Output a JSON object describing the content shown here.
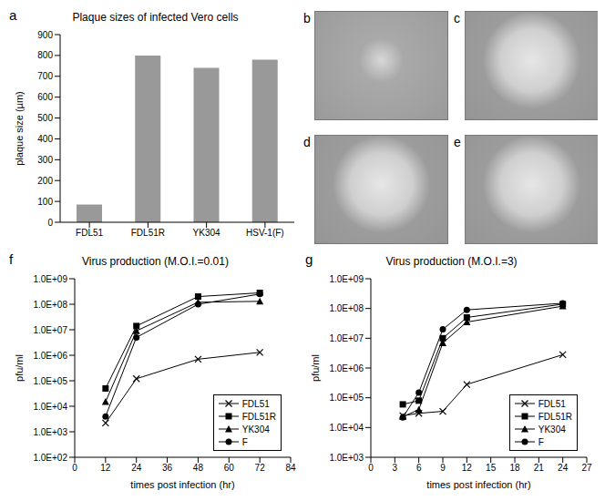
{
  "chart_data": [
    {
      "type": "bar",
      "annotations": [
        "a"
      ],
      "title": "Plaque sizes of infected Vero cells",
      "y_label": "plaque size (µm)",
      "categories": [
        "FDL51",
        "FDL51R",
        "YK304",
        "HSV-1(F)"
      ],
      "values": [
        85,
        800,
        740,
        780
      ],
      "color": "#999999",
      "ylim": [
        0,
        900
      ],
      "yticks": [
        0,
        100,
        200,
        300,
        400,
        500,
        600,
        700,
        800,
        900
      ]
    },
    {
      "type": "line",
      "annotations": [
        "f"
      ],
      "title": "Virus production (M.O.I.=0.01)",
      "x_label": "times post infection (hr)",
      "y_label": "pfu/ml",
      "log": "y",
      "legend": "lower right",
      "x": [
        12,
        24,
        48,
        72
      ],
      "xlim": [
        0,
        84
      ],
      "xticks": [
        0,
        12,
        24,
        36,
        48,
        60,
        72,
        84
      ],
      "ylim": [
        100,
        1000000000
      ],
      "yticks": [
        {
          "value": 100,
          "label": "1.0E+02"
        },
        {
          "value": 1000,
          "label": "1.0E+03"
        },
        {
          "value": 10000,
          "label": "1.0E+04"
        },
        {
          "value": 100000,
          "label": "1.0E+05"
        },
        {
          "value": 1000000,
          "label": "1.0E+06"
        },
        {
          "value": 10000000,
          "label": "1.0E+07"
        },
        {
          "value": 100000000,
          "label": "1.0E+08"
        },
        {
          "value": 1000000000,
          "label": "1.0E+09"
        }
      ],
      "series": [
        {
          "name": "FDL51",
          "color": "#000000",
          "marker": "x",
          "values": [
            2200,
            120000,
            700000,
            1300000
          ]
        },
        {
          "name": "FDL51R",
          "color": "#000000",
          "marker": "square",
          "values": [
            50000,
            14000000,
            200000000,
            280000000
          ]
        },
        {
          "name": "YK304",
          "color": "#000000",
          "marker": "triangle",
          "values": [
            15000,
            9000000,
            120000000,
            130000000
          ]
        },
        {
          "name": "F",
          "color": "#000000",
          "marker": "circle",
          "values": [
            4000,
            5000000,
            100000000,
            250000000
          ]
        }
      ]
    },
    {
      "type": "line",
      "annotations": [
        "g"
      ],
      "title": "Virus production (M.O.I.=3)",
      "x_label": "times post infection (hr)",
      "y_label": "pfu/ml",
      "log": "y",
      "legend": "lower right",
      "x": [
        4,
        6,
        9,
        12,
        24
      ],
      "xlim": [
        0,
        27
      ],
      "xticks": [
        0,
        3,
        6,
        9,
        12,
        15,
        18,
        21,
        24,
        27
      ],
      "ylim": [
        1000,
        1000000000
      ],
      "yticks": [
        {
          "value": 1000,
          "label": "1.0E+03"
        },
        {
          "value": 10000,
          "label": "1.0E+04"
        },
        {
          "value": 100000,
          "label": "1.0E+05"
        },
        {
          "value": 1000000,
          "label": "1.0E+06"
        },
        {
          "value": 10000000,
          "label": "1.0E+07"
        },
        {
          "value": 100000000,
          "label": "1.0E+08"
        },
        {
          "value": 1000000000,
          "label": "1.0E+09"
        }
      ],
      "series": [
        {
          "name": "FDL51",
          "color": "#000000",
          "marker": "x",
          "values": [
            25000,
            30000,
            35000,
            280000,
            2800000
          ]
        },
        {
          "name": "FDL51R",
          "color": "#000000",
          "marker": "square",
          "values": [
            60000,
            80000,
            10000000,
            50000000,
            140000000
          ]
        },
        {
          "name": "YK304",
          "color": "#000000",
          "marker": "triangle",
          "values": [
            23000,
            40000,
            7000000,
            35000000,
            120000000
          ]
        },
        {
          "name": "F",
          "color": "#000000",
          "marker": "circle",
          "values": [
            22000,
            150000,
            20000000,
            90000000,
            150000000
          ]
        }
      ]
    }
  ],
  "images": [
    {
      "label": "b"
    },
    {
      "label": "c"
    },
    {
      "label": "d"
    },
    {
      "label": "e"
    }
  ]
}
